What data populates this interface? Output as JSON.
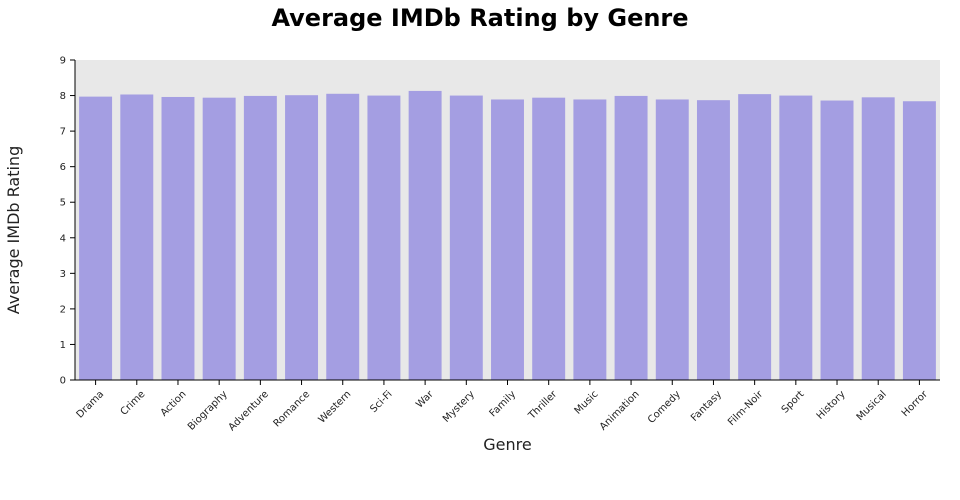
{
  "chart_data": {
    "type": "bar",
    "title": "Average IMDb Rating by Genre",
    "xlabel": "Genre",
    "ylabel": "Average IMDb Rating",
    "ylim": [
      0,
      9
    ],
    "yticks": [
      0,
      1,
      2,
      3,
      4,
      5,
      6,
      7,
      8,
      9
    ],
    "grid": false,
    "categories": [
      "Drama",
      "Crime",
      "Action",
      "Biography",
      "Adventure",
      "Romance",
      "Western",
      "Sci-Fi",
      "War",
      "Mystery",
      "Family",
      "Thriller",
      "Music",
      "Animation",
      "Comedy",
      "Fantasy",
      "Film-Noir",
      "Sport",
      "History",
      "Musical",
      "Horror"
    ],
    "values": [
      7.97,
      8.03,
      7.96,
      7.94,
      7.99,
      8.01,
      8.05,
      8.0,
      8.13,
      8.0,
      7.89,
      7.94,
      7.89,
      7.99,
      7.89,
      7.87,
      8.04,
      8.0,
      7.86,
      7.95,
      7.84
    ],
    "colors": {
      "bar": "#a49ee2",
      "plot_bg": "#e8e8e8",
      "axis": "#000000"
    }
  }
}
